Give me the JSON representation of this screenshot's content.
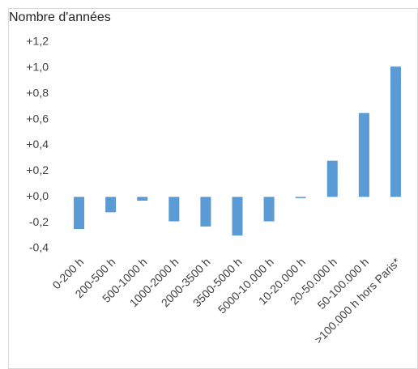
{
  "chart_data": {
    "type": "bar",
    "title": "Nombre d'années",
    "categories": [
      "0-200 h",
      "200-500 h",
      "500-1000 h",
      "1000-2000 h",
      "2000-3500 h",
      "3500-5000 h",
      "5000-10.000 h",
      "10-20.000 h",
      "20-50.000 h",
      "50-100.000 h",
      ">100.000 h hors Paris*"
    ],
    "values": [
      -0.25,
      -0.12,
      -0.03,
      -0.19,
      -0.23,
      -0.3,
      -0.19,
      -0.01,
      0.28,
      0.65,
      1.01
    ],
    "color": "#5b9bd5",
    "ylim": [
      -0.4,
      1.2
    ],
    "yticks": [
      {
        "value": 1.2,
        "label": "+1,2"
      },
      {
        "value": 1.0,
        "label": "+1,0"
      },
      {
        "value": 0.8,
        "label": "+0,8"
      },
      {
        "value": 0.6,
        "label": "+0,6"
      },
      {
        "value": 0.4,
        "label": "+0,4"
      },
      {
        "value": 0.2,
        "label": "+0,2"
      },
      {
        "value": 0,
        "label": "+0,0"
      },
      {
        "value": -0.2,
        "label": "-0,2"
      },
      {
        "value": -0.4,
        "label": "-0,4"
      }
    ],
    "grid": false
  }
}
